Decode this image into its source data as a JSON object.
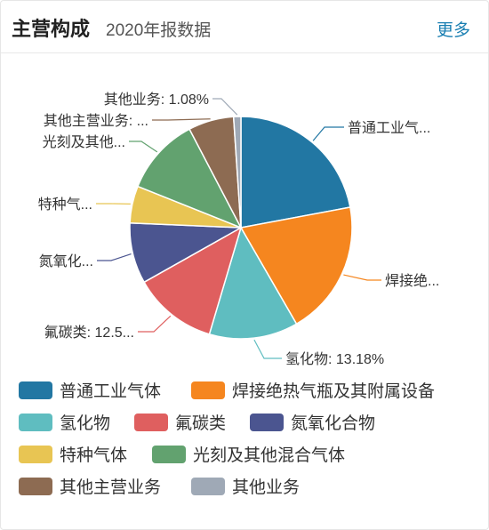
{
  "header": {
    "title": "主营构成",
    "subtitle": "2020年报数据",
    "more_label": "更多"
  },
  "chart_data": {
    "type": "pie",
    "series": [
      {
        "name": "普通工业气体",
        "label": "普通工业气...",
        "value": 22.5,
        "color": "#2277a3"
      },
      {
        "name": "焊接绝热气瓶及其附属设备",
        "label": "焊接绝...",
        "value": 20.0,
        "color": "#f5861f"
      },
      {
        "name": "氢化物",
        "label": "氢化物: 13.18%",
        "value": 13.18,
        "color": "#5fbdc0"
      },
      {
        "name": "氟碳类",
        "label": "氟碳类: 12.5...",
        "value": 12.5,
        "color": "#df5f5f"
      },
      {
        "name": "氮氧化合物",
        "label": "氮氧化...",
        "value": 9.0,
        "color": "#4b5590"
      },
      {
        "name": "特种气体",
        "label": "特种气...",
        "value": 5.5,
        "color": "#e8c553"
      },
      {
        "name": "光刻及其他混合气体",
        "label": "光刻及其他...",
        "value": 11.5,
        "color": "#62a26f"
      },
      {
        "name": "其他主营业务",
        "label": "其他主营业务: ...",
        "value": 6.74,
        "color": "#8d6b52"
      },
      {
        "name": "其他业务",
        "label": "其他业务: 1.08%",
        "value": 1.08,
        "color": "#9fa9b6"
      }
    ]
  }
}
